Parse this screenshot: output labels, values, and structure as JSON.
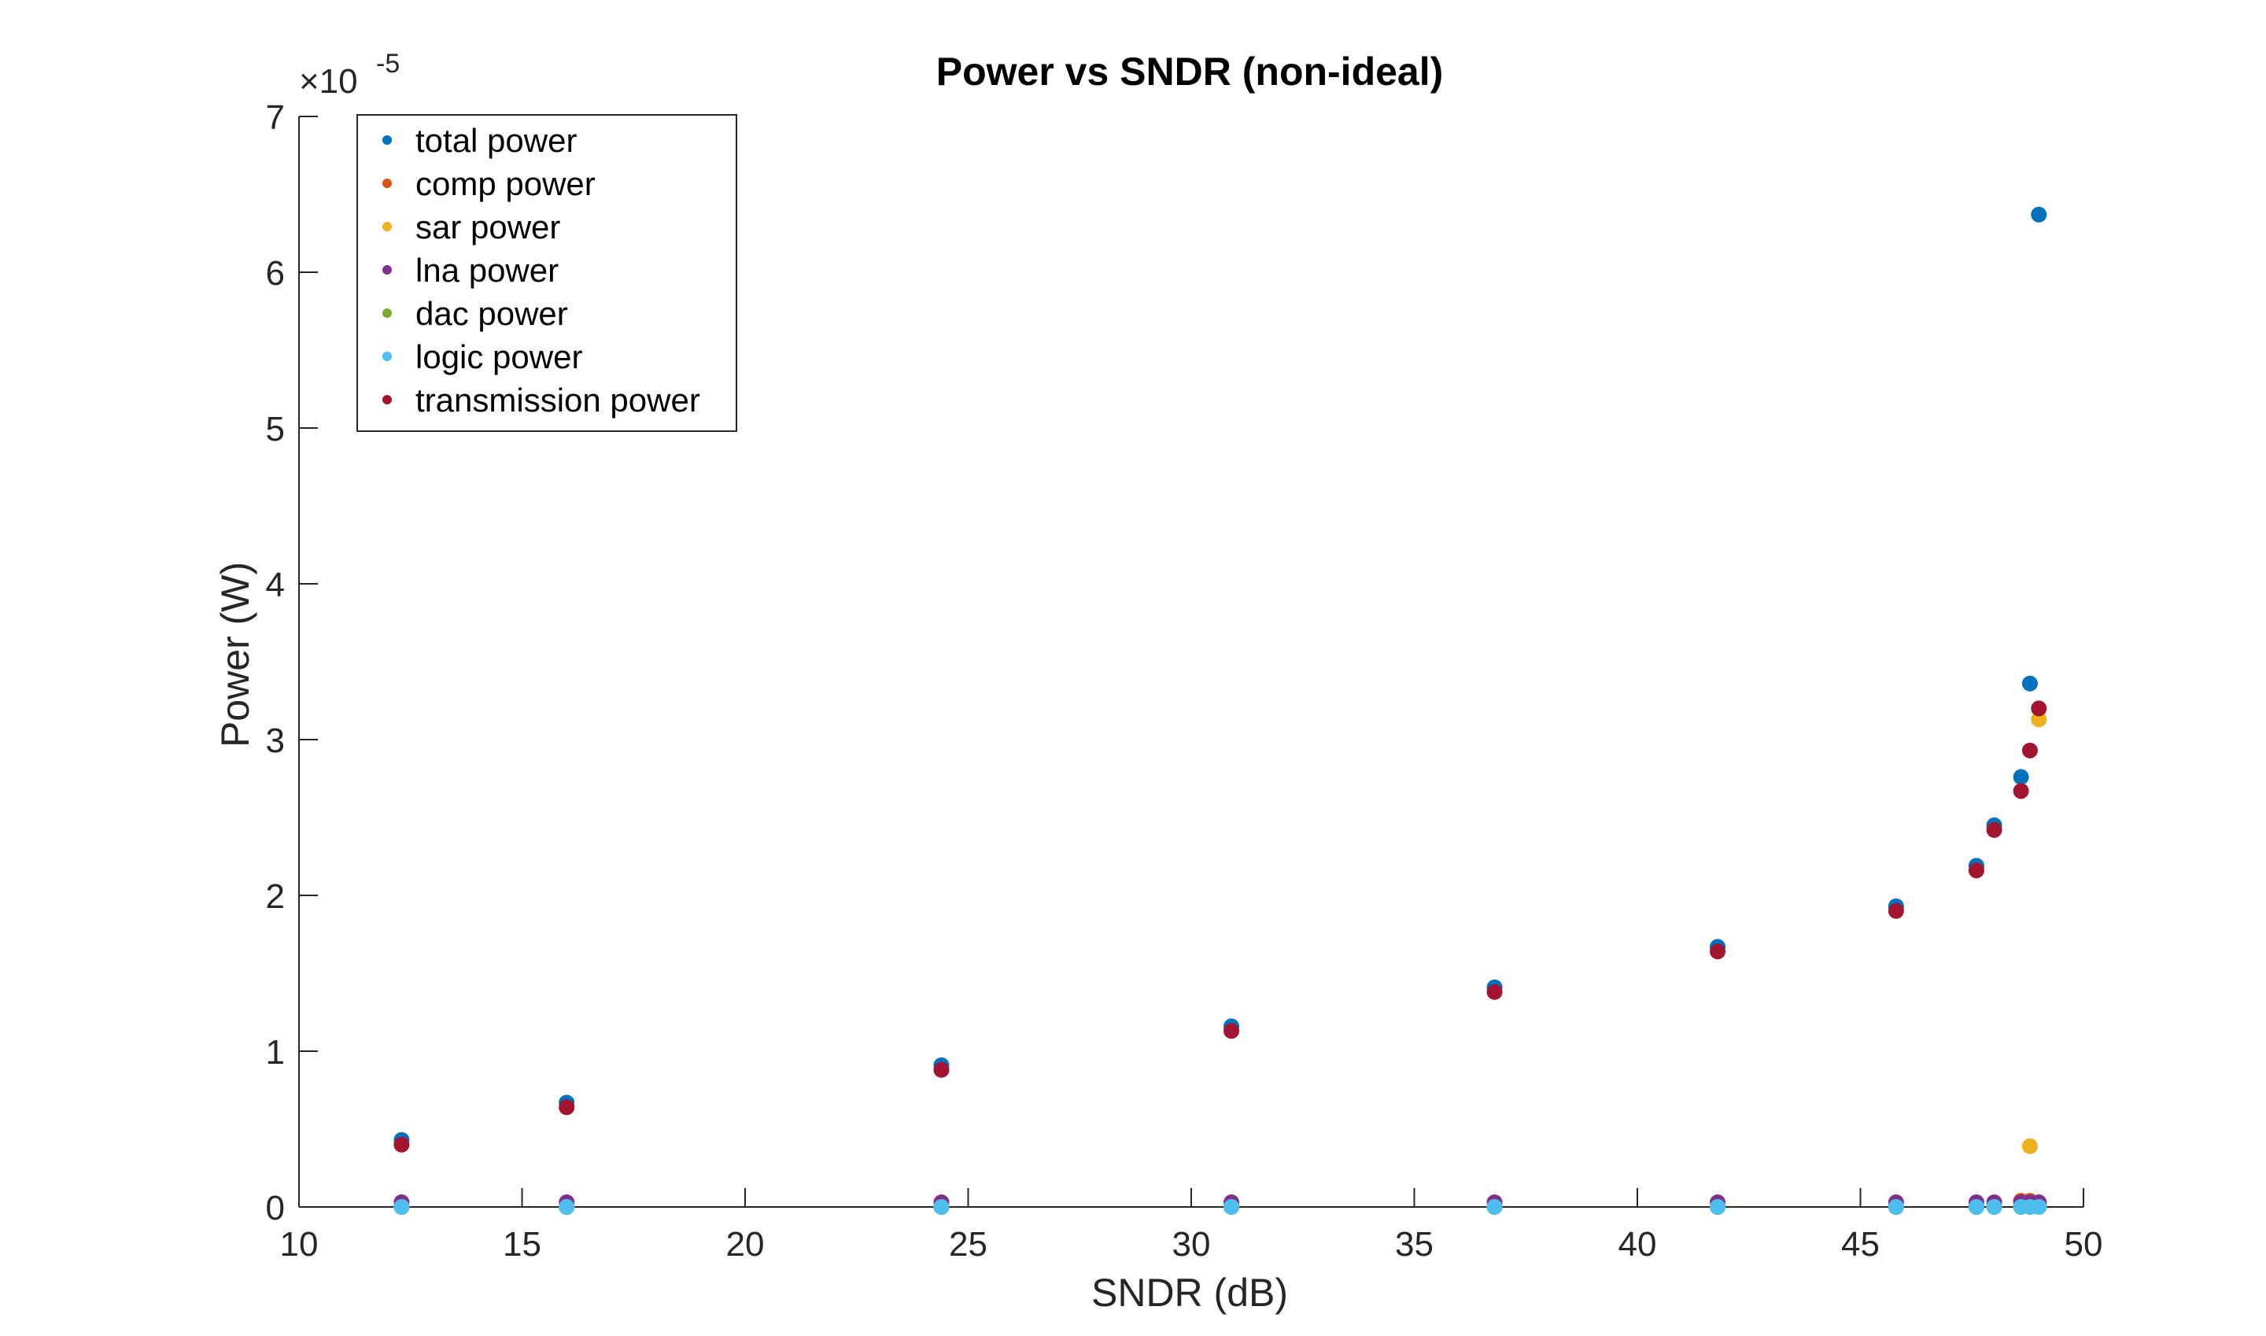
{
  "chart_data": {
    "type": "scatter",
    "title": "Power vs SNDR (non-ideal)",
    "xlabel": "SNDR (dB)",
    "ylabel": "Power (W)",
    "xlim": [
      10,
      50
    ],
    "ylim": [
      0,
      7
    ],
    "y_exponent": "×10",
    "y_exponent_power": "-5",
    "xticks": [
      "10",
      "15",
      "20",
      "25",
      "30",
      "35",
      "40",
      "45",
      "50"
    ],
    "yticks": [
      "0",
      "1",
      "2",
      "3",
      "4",
      "5",
      "6",
      "7"
    ],
    "grid": false,
    "legend_position": "top-left",
    "x": [
      12.3,
      16.0,
      24.4,
      30.9,
      36.8,
      41.8,
      45.8,
      47.6,
      48.0,
      48.6,
      48.8,
      49.0
    ],
    "series": [
      {
        "name": "total power",
        "color": "#0072BD",
        "values": [
          0.43,
          0.67,
          0.91,
          1.16,
          1.41,
          1.67,
          1.93,
          2.19,
          2.45,
          2.76,
          3.36,
          6.37
        ]
      },
      {
        "name": "comp power",
        "color": "#D95319",
        "values": [
          0.002,
          0.002,
          0.002,
          0.002,
          0.002,
          0.002,
          0.002,
          0.002,
          0.002,
          0.04,
          0.04,
          0.02
        ]
      },
      {
        "name": "sar power",
        "color": "#EDB120",
        "values": [
          0.0,
          0.0,
          0.0,
          0.0,
          0.0,
          0.0,
          0.0,
          0.0,
          0.0,
          0.0,
          0.39,
          3.13
        ]
      },
      {
        "name": "lna power",
        "color": "#7E2F8E",
        "values": [
          0.03,
          0.03,
          0.03,
          0.03,
          0.03,
          0.03,
          0.03,
          0.03,
          0.03,
          0.03,
          0.03,
          0.03
        ]
      },
      {
        "name": "dac power",
        "color": "#77AC30",
        "values": [
          0.0,
          0.0,
          0.0,
          0.0,
          0.0,
          0.0,
          0.0,
          0.0,
          0.0,
          0.0,
          0.0,
          0.0
        ]
      },
      {
        "name": "logic power",
        "color": "#4DBEEE",
        "values": [
          0.0,
          0.0,
          0.0,
          0.0,
          0.0,
          0.0,
          0.0,
          0.0,
          0.0,
          0.0,
          0.0,
          0.0
        ]
      },
      {
        "name": "transmission power",
        "color": "#A2142F",
        "values": [
          0.4,
          0.64,
          0.88,
          1.13,
          1.38,
          1.64,
          1.9,
          2.16,
          2.42,
          2.67,
          2.93,
          3.2
        ]
      }
    ]
  }
}
